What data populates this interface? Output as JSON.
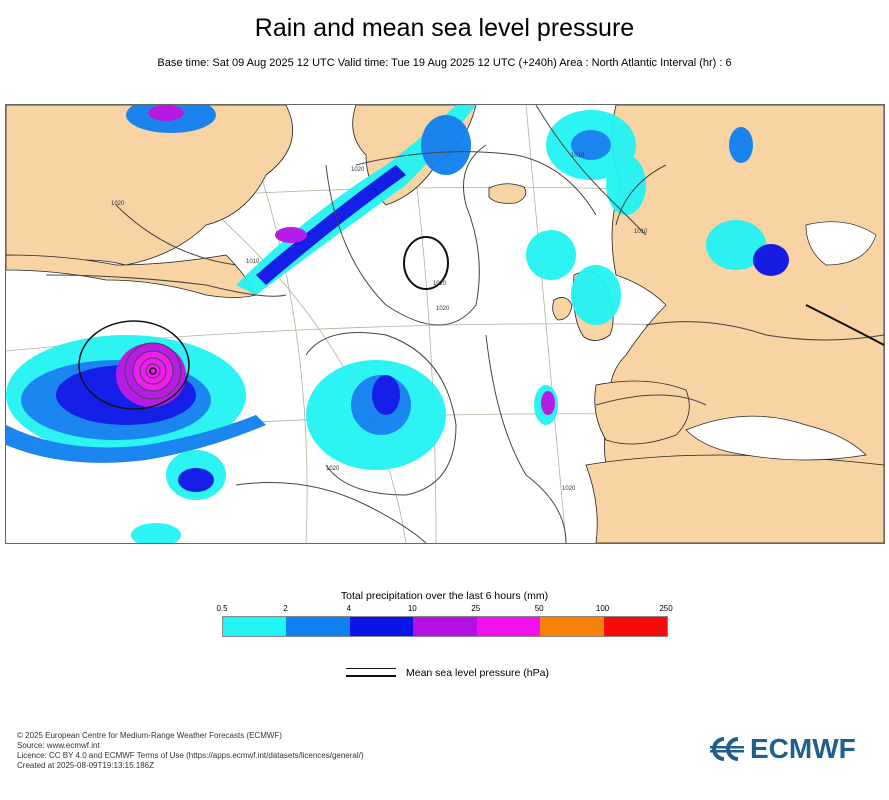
{
  "header": {
    "title": "Rain and mean sea level pressure",
    "subtitle": "Base time: Sat 09 Aug 2025 12 UTC Valid time: Tue 19 Aug 2025 12 UTC (+240h) Area : North Atlantic Interval (hr) : 6"
  },
  "map": {
    "isobar_labels": [
      "1020",
      "1010",
      "1020",
      "1020",
      "1020",
      "1020",
      "1010",
      "1020",
      "1010"
    ],
    "colors": {
      "land": "#f8d3a3",
      "sea": "#ffffff",
      "isobar": "#444444",
      "graticule": "#b8ad9a"
    }
  },
  "legend": {
    "title": "Total precipitation over the last 6 hours (mm)",
    "ticks": [
      "0.5",
      "2",
      "4",
      "10",
      "25",
      "50",
      "100",
      "250"
    ],
    "colors": [
      "#22f3f3",
      "#1080f0",
      "#0a14e6",
      "#b410e6",
      "#f010f0",
      "#f88208",
      "#f80a0a"
    ],
    "mslp_label": "Mean sea level pressure (hPa)"
  },
  "footer": {
    "lines": [
      "© 2025 European Centre for Medium-Range Weather Forecasts (ECMWF)",
      "Source: www.ecmwf.int",
      "Licence: CC BY 4.0 and ECMWF Terms of Use (https://apps.ecmwf.int/datasets/licences/general/)",
      "Created at 2025-08-09T19:13:15.186Z"
    ]
  },
  "logo": {
    "text": "ECMWF",
    "icon": "ecmwf-logo-icon",
    "color": "#1f5f8b"
  }
}
